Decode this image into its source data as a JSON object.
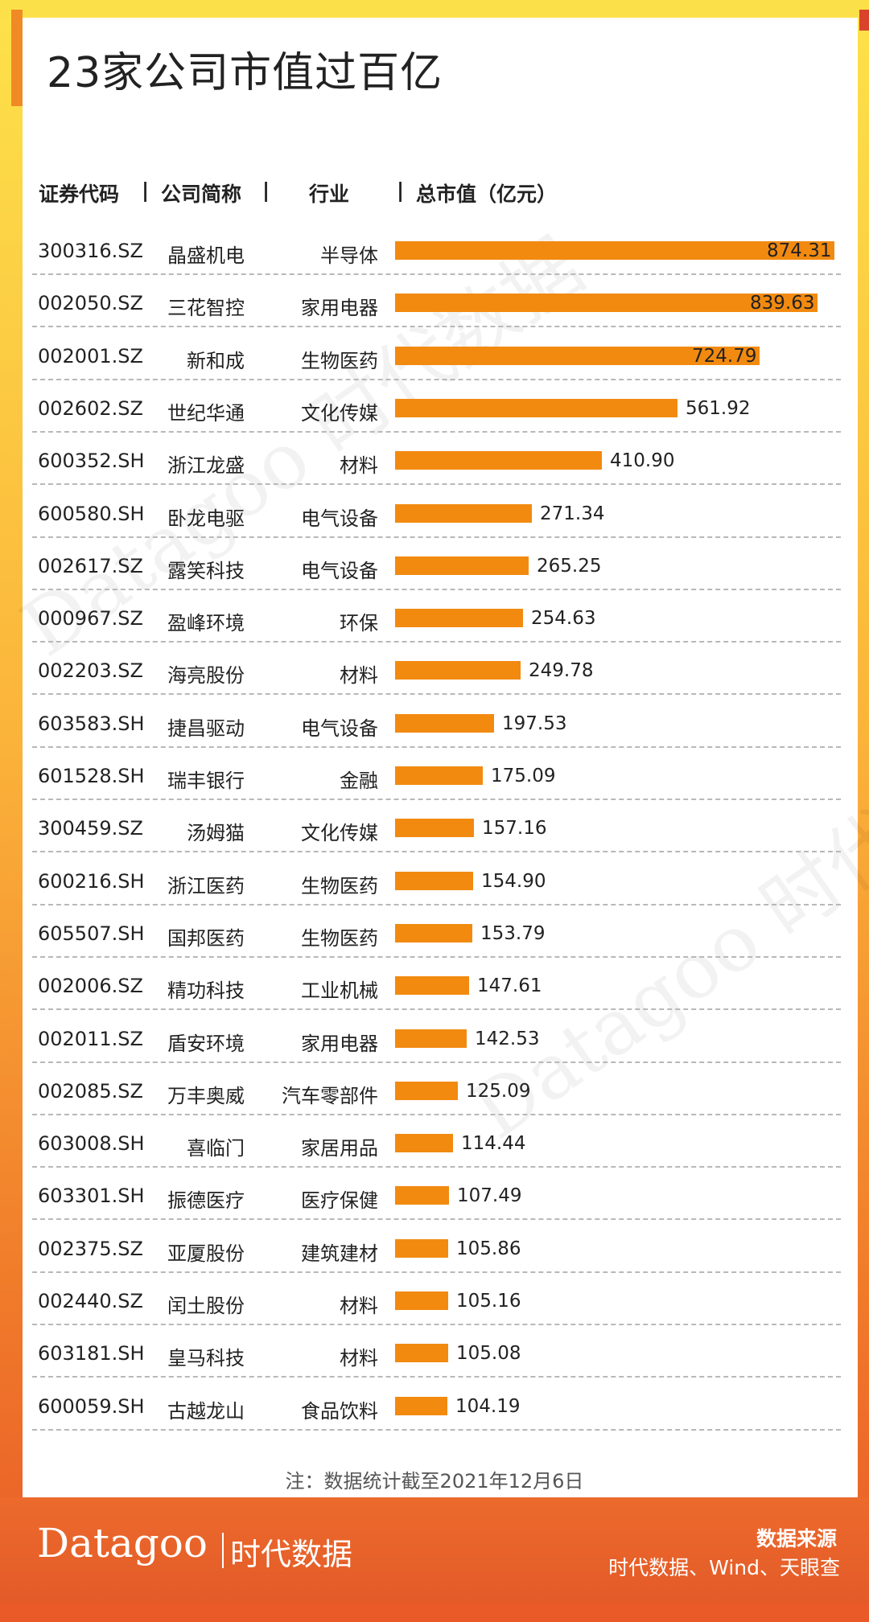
{
  "title": "23家公司市值过百亿",
  "headers": {
    "code": "证券代码",
    "sep1": "|",
    "name": "公司简称",
    "sep2": "|",
    "industry": "行业",
    "sep3": "|",
    "value": "总市值（亿元）"
  },
  "note": "注：数据统计截至2021年12月6日",
  "brand": {
    "en": "Datagoo",
    "cn": "时代数据"
  },
  "source": {
    "title": "数据来源",
    "text": "时代数据、Wind、天眼查"
  },
  "watermark": "Datagoo 时代数据",
  "colors": {
    "bar": "#f28a10",
    "footer": "#e85a28",
    "frame": "#fde24a"
  },
  "chart_data": {
    "type": "bar",
    "orientation": "horizontal",
    "title": "23家公司市值过百亿",
    "value_label": "总市值（亿元）",
    "rows": [
      {
        "code": "300316.SZ",
        "name": "晶盛机电",
        "industry": "半导体",
        "value": "874.31"
      },
      {
        "code": "002050.SZ",
        "name": "三花智控",
        "industry": "家用电器",
        "value": "839.63"
      },
      {
        "code": "002001.SZ",
        "name": "新和成",
        "industry": "生物医药",
        "value": "724.79"
      },
      {
        "code": "002602.SZ",
        "name": "世纪华通",
        "industry": "文化传媒",
        "value": "561.92"
      },
      {
        "code": "600352.SH",
        "name": "浙江龙盛",
        "industry": "材料",
        "value": "410.90"
      },
      {
        "code": "600580.SH",
        "name": "卧龙电驱",
        "industry": "电气设备",
        "value": "271.34"
      },
      {
        "code": "002617.SZ",
        "name": "露笑科技",
        "industry": "电气设备",
        "value": "265.25"
      },
      {
        "code": "000967.SZ",
        "name": "盈峰环境",
        "industry": "环保",
        "value": "254.63"
      },
      {
        "code": "002203.SZ",
        "name": "海亮股份",
        "industry": "材料",
        "value": "249.78"
      },
      {
        "code": "603583.SH",
        "name": "捷昌驱动",
        "industry": "电气设备",
        "value": "197.53"
      },
      {
        "code": "601528.SH",
        "name": "瑞丰银行",
        "industry": "金融",
        "value": "175.09"
      },
      {
        "code": "300459.SZ",
        "name": "汤姆猫",
        "industry": "文化传媒",
        "value": "157.16"
      },
      {
        "code": "600216.SH",
        "name": "浙江医药",
        "industry": "生物医药",
        "value": "154.90"
      },
      {
        "code": "605507.SH",
        "name": "国邦医药",
        "industry": "生物医药",
        "value": "153.79"
      },
      {
        "code": "002006.SZ",
        "name": "精功科技",
        "industry": "工业机械",
        "value": "147.61"
      },
      {
        "code": "002011.SZ",
        "name": "盾安环境",
        "industry": "家用电器",
        "value": "142.53"
      },
      {
        "code": "002085.SZ",
        "name": "万丰奥威",
        "industry": "汽车零部件",
        "value": "125.09"
      },
      {
        "code": "603008.SH",
        "name": "喜临门",
        "industry": "家居用品",
        "value": "114.44"
      },
      {
        "code": "603301.SH",
        "name": "振德医疗",
        "industry": "医疗保健",
        "value": "107.49"
      },
      {
        "code": "002375.SZ",
        "name": "亚厦股份",
        "industry": "建筑建材",
        "value": "105.86"
      },
      {
        "code": "002440.SZ",
        "name": "闰土股份",
        "industry": "材料",
        "value": "105.16"
      },
      {
        "code": "603181.SH",
        "name": "皇马科技",
        "industry": "材料",
        "value": "105.08"
      },
      {
        "code": "600059.SH",
        "name": "古越龙山",
        "industry": "食品饮料",
        "value": "104.19"
      }
    ],
    "xlim": [
      0,
      880
    ],
    "grid": false,
    "legend": "none"
  }
}
